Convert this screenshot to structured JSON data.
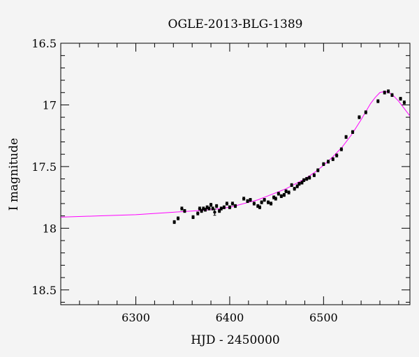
{
  "chart_data": {
    "type": "scatter",
    "title": "OGLE-2013-BLG-1389",
    "xlabel": "HJD - 2450000",
    "ylabel": "I magnitude",
    "xlim": [
      6220,
      6592
    ],
    "ylim": [
      16.5,
      18.62
    ],
    "y_inverted": true,
    "grid": false,
    "xticks": [
      {
        "v": 6300,
        "label": "6300"
      },
      {
        "v": 6400,
        "label": "6400"
      },
      {
        "v": 6500,
        "label": "6500"
      }
    ],
    "yticks": [
      {
        "v": 16.5,
        "label": "16.5"
      },
      {
        "v": 17,
        "label": "17"
      },
      {
        "v": 17.5,
        "label": "17.5"
      },
      {
        "v": 18,
        "label": "18"
      },
      {
        "v": 18.5,
        "label": "18.5"
      }
    ],
    "model_color": "#ff00ff",
    "model": {
      "x": [
        6220,
        6260,
        6300,
        6340,
        6360,
        6380,
        6400,
        6410,
        6420,
        6430,
        6440,
        6450,
        6460,
        6470,
        6480,
        6490,
        6500,
        6510,
        6520,
        6530,
        6540,
        6550,
        6555,
        6560,
        6565,
        6570,
        6575,
        6580,
        6585,
        6592
      ],
      "y": [
        17.91,
        17.9,
        17.89,
        17.87,
        17.86,
        17.85,
        17.83,
        17.81,
        17.79,
        17.77,
        17.74,
        17.71,
        17.68,
        17.64,
        17.6,
        17.55,
        17.49,
        17.42,
        17.34,
        17.24,
        17.12,
        16.99,
        16.94,
        16.9,
        16.89,
        16.9,
        16.93,
        16.97,
        17.02,
        17.09
      ]
    },
    "series": [
      {
        "x": [
          6341,
          6345,
          6349,
          6352,
          6361,
          6366,
          6368,
          6370,
          6372,
          6374,
          6376,
          6378,
          6380,
          6382,
          6384,
          6386,
          6389,
          6391,
          6394,
          6397,
          6400,
          6403,
          6406,
          6415,
          6419,
          6422,
          6426,
          6430,
          6432,
          6434,
          6437,
          6441,
          6444,
          6447,
          6449,
          6452,
          6455,
          6458,
          6460,
          6463,
          6466,
          6469,
          6472,
          6474,
          6477,
          6479,
          6482,
          6485,
          6490,
          6494,
          6500,
          6505,
          6510,
          6514,
          6519,
          6524,
          6531,
          6538,
          6545,
          6558,
          6565,
          6569,
          6573,
          6582,
          6586
        ],
        "y": [
          17.95,
          17.92,
          17.84,
          17.86,
          17.91,
          17.88,
          17.84,
          17.86,
          17.84,
          17.85,
          17.83,
          17.84,
          17.81,
          17.84,
          17.87,
          17.82,
          17.86,
          17.84,
          17.83,
          17.8,
          17.83,
          17.8,
          17.82,
          17.76,
          17.78,
          17.77,
          17.8,
          17.82,
          17.83,
          17.79,
          17.77,
          17.79,
          17.8,
          17.75,
          17.76,
          17.72,
          17.74,
          17.73,
          17.7,
          17.71,
          17.65,
          17.68,
          17.66,
          17.64,
          17.63,
          17.61,
          17.6,
          17.59,
          17.57,
          17.53,
          17.48,
          17.46,
          17.44,
          17.41,
          17.36,
          17.26,
          17.22,
          17.1,
          17.06,
          16.97,
          16.9,
          16.89,
          16.92,
          16.95,
          16.98
        ],
        "yerr": [
          0.012,
          0.012,
          0.012,
          0.012,
          0.012,
          0.012,
          0.012,
          0.012,
          0.012,
          0.012,
          0.012,
          0.012,
          0.012,
          0.012,
          0.025,
          0.012,
          0.012,
          0.012,
          0.012,
          0.012,
          0.012,
          0.012,
          0.012,
          0.012,
          0.012,
          0.012,
          0.012,
          0.012,
          0.012,
          0.012,
          0.012,
          0.012,
          0.012,
          0.012,
          0.012,
          0.012,
          0.012,
          0.012,
          0.012,
          0.012,
          0.012,
          0.012,
          0.012,
          0.012,
          0.012,
          0.012,
          0.012,
          0.012,
          0.012,
          0.012,
          0.012,
          0.012,
          0.012,
          0.012,
          0.012,
          0.012,
          0.012,
          0.012,
          0.012,
          0.012,
          0.012,
          0.012,
          0.012,
          0.012,
          0.012
        ]
      }
    ]
  }
}
